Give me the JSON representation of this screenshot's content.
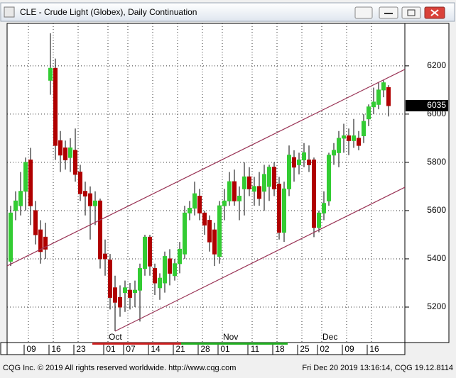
{
  "header": {
    "title": "CLE - Crude Light (Globex), Daily Continuation"
  },
  "chart_data": {
    "type": "candlestick",
    "categories": [
      null,
      null,
      null,
      null,
      "09",
      null,
      null,
      null,
      null,
      "16",
      null,
      null,
      null,
      null,
      "23",
      null,
      null,
      null,
      null,
      null,
      "01",
      null,
      null,
      null,
      "07",
      null,
      null,
      null,
      null,
      "14",
      null,
      null,
      null,
      null,
      "21",
      null,
      null,
      null,
      null,
      "28",
      null,
      null,
      null,
      "01",
      null,
      null,
      null,
      null,
      null,
      "11",
      null,
      null,
      null,
      null,
      "18",
      null,
      null,
      null,
      null,
      "25",
      null,
      null,
      null,
      "02",
      null,
      null,
      null,
      null,
      "09",
      null,
      null,
      null,
      null,
      "16",
      null,
      null,
      null
    ],
    "month_categories": [
      null,
      null,
      null,
      null,
      null,
      null,
      null,
      null,
      null,
      null,
      null,
      null,
      null,
      null,
      null,
      null,
      null,
      null,
      null,
      null,
      "Oct",
      null,
      null,
      null,
      null,
      null,
      null,
      null,
      null,
      null,
      null,
      null,
      null,
      null,
      null,
      null,
      null,
      null,
      null,
      null,
      null,
      null,
      null,
      "Nov",
      null,
      null,
      null,
      null,
      null,
      null,
      null,
      null,
      null,
      null,
      null,
      null,
      null,
      null,
      null,
      null,
      null,
      null,
      null,
      "Dec",
      null,
      null,
      null,
      null,
      null,
      null,
      null,
      null,
      null,
      null,
      null,
      null,
      null
    ],
    "open": [
      5390,
      5600,
      5620,
      5680,
      5810,
      5600,
      5520,
      5490,
      6140,
      6190,
      5890,
      5860,
      5820,
      5850,
      5760,
      5680,
      5670,
      5620,
      5640,
      5420,
      5395,
      5280,
      5240,
      5260,
      5270,
      5260,
      5270,
      5360,
      5490,
      5360,
      5280,
      5300,
      5400,
      5330,
      5380,
      5420,
      5590,
      5610,
      5660,
      5590,
      5560,
      5520,
      5410,
      5620,
      5640,
      5720,
      5640,
      5690,
      5740,
      5680,
      5700,
      5680,
      5700,
      5780,
      5710,
      5510,
      5690,
      5820,
      5790,
      5810,
      5810,
      5810,
      5530,
      5590,
      5640,
      5830,
      5840,
      5900,
      5910,
      5890,
      5900,
      5910,
      5980,
      6030,
      6040,
      6100,
      6110
    ],
    "high": [
      5620,
      5680,
      5760,
      5820,
      5860,
      5640,
      5560,
      5550,
      6335,
      6230,
      5930,
      5890,
      5900,
      5940,
      5790,
      5720,
      5700,
      5680,
      5650,
      5480,
      5420,
      5330,
      5290,
      5310,
      5300,
      5310,
      5380,
      5500,
      5500,
      5380,
      5340,
      5430,
      5440,
      5400,
      5470,
      5620,
      5640,
      5720,
      5690,
      5600,
      5580,
      5550,
      5640,
      5690,
      5760,
      5770,
      5700,
      5800,
      5780,
      5740,
      5760,
      5790,
      5790,
      5800,
      5740,
      5720,
      5870,
      5850,
      5840,
      5880,
      5870,
      5820,
      5600,
      5680,
      5840,
      5880,
      5930,
      5960,
      5940,
      5980,
      5930,
      6000,
      6040,
      6110,
      6130,
      6140,
      6120
    ],
    "low": [
      5370,
      5560,
      5580,
      5600,
      5540,
      5460,
      5380,
      5400,
      6080,
      5810,
      5760,
      5770,
      5760,
      5720,
      5640,
      5580,
      5480,
      5540,
      5360,
      5330,
      5190,
      5100,
      5160,
      5180,
      5190,
      5200,
      5140,
      5330,
      5330,
      5250,
      5230,
      5260,
      5290,
      5310,
      5340,
      5400,
      5560,
      5580,
      5560,
      5500,
      5430,
      5370,
      5380,
      5560,
      5620,
      5620,
      5560,
      5580,
      5660,
      5620,
      5620,
      5600,
      5640,
      5660,
      5480,
      5470,
      5660,
      5720,
      5750,
      5780,
      5760,
      5490,
      5510,
      5560,
      5620,
      5790,
      5780,
      5840,
      5830,
      5860,
      5850,
      5880,
      5950,
      6000,
      6020,
      6070,
      5990
    ],
    "close": [
      5590,
      5640,
      5680,
      5800,
      5620,
      5500,
      5430,
      5440,
      6190,
      5870,
      5830,
      5810,
      5860,
      5750,
      5670,
      5660,
      5620,
      5640,
      5400,
      5400,
      5240,
      5220,
      5200,
      5280,
      5240,
      5270,
      5360,
      5490,
      5370,
      5300,
      5320,
      5410,
      5340,
      5380,
      5440,
      5590,
      5610,
      5670,
      5590,
      5540,
      5470,
      5420,
      5620,
      5640,
      5720,
      5640,
      5660,
      5740,
      5690,
      5700,
      5650,
      5750,
      5780,
      5690,
      5510,
      5690,
      5830,
      5780,
      5810,
      5840,
      5790,
      5530,
      5590,
      5630,
      5830,
      5850,
      5900,
      5910,
      5890,
      5910,
      5870,
      5970,
      6030,
      6050,
      6100,
      6130,
      6035
    ],
    "up_color": "#33cc33",
    "down_color": "#b00000",
    "ylim": [
      5053,
      6376
    ],
    "yticks": [
      5200,
      5400,
      5600,
      5800,
      6000,
      6200
    ],
    "grid": true,
    "last_value": 6035,
    "trend_lines": [
      {
        "from": [
          0,
          5378
        ],
        "to": [
          76,
          6152
        ]
      },
      {
        "from": [
          21,
          5100
        ],
        "to": [
          76,
          5663
        ]
      }
    ],
    "trend_color": "#993355"
  },
  "footer": {
    "left": "CQG Inc. © 2019 All rights reserved worldwide. http://www.cqg.com",
    "right": "Fri Dec 20 2019 13:16:14, CQG 19.12.8114"
  }
}
